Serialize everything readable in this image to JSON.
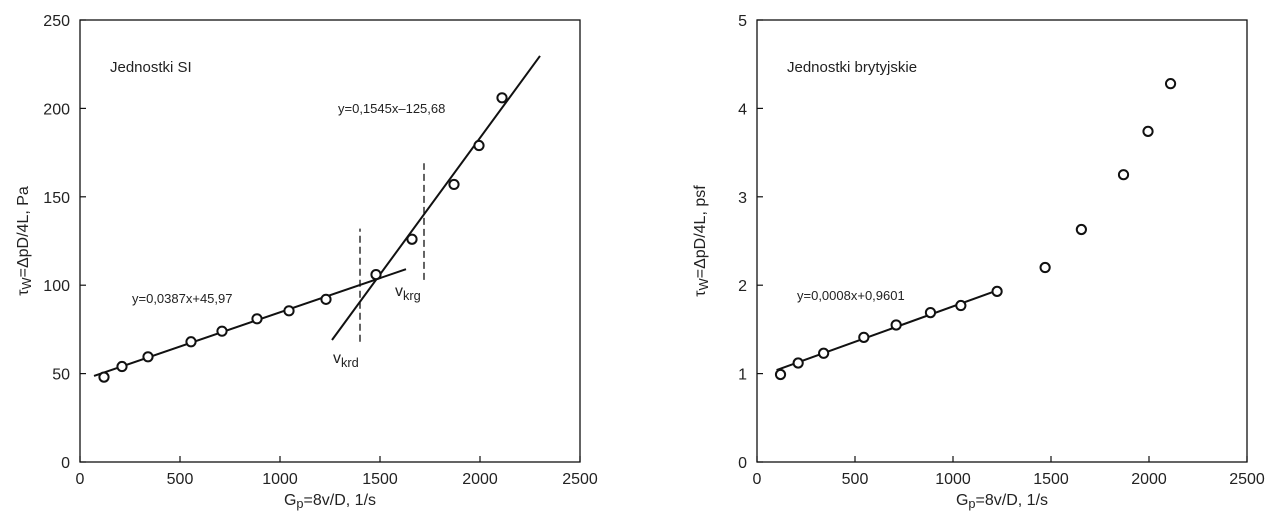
{
  "chart_data": [
    {
      "type": "scatter",
      "title": "Jednostki SI",
      "xlabel": "G",
      "xlabel_sub": "p",
      "xlabel_rest": "=8v/D, 1/s",
      "ylabel": "τ",
      "ylabel_sub": "W",
      "ylabel_rest": "=ΔpD/4L, Pa",
      "xlim": [
        0,
        2500
      ],
      "ylim": [
        0,
        250
      ],
      "xticks": [
        0,
        500,
        1000,
        1500,
        2000,
        2500
      ],
      "yticks": [
        0,
        50,
        100,
        150,
        200,
        250
      ],
      "grid": false,
      "series": [
        {
          "x": [
            120,
            210,
            340,
            555,
            710,
            885,
            1045,
            1230,
            1480,
            1660,
            1870,
            1995,
            2110
          ],
          "y": [
            48,
            54,
            59.5,
            68,
            74,
            81,
            85.5,
            92,
            106,
            126,
            157,
            179,
            206
          ]
        }
      ],
      "fits": [
        {
          "label": "y=0,0387x+45,97",
          "slope": 0.0387,
          "intercept": 45.97,
          "x_range": [
            70,
            1630
          ]
        },
        {
          "label": "y=0,1545x–125,68",
          "slope": 0.1545,
          "intercept": -125.68,
          "x_range": [
            1260,
            2300
          ]
        }
      ],
      "markers": [
        {
          "label": "v",
          "sub": "krd",
          "x": 1400,
          "y_range": [
            68,
            132
          ]
        },
        {
          "label": "v",
          "sub": "krg",
          "x": 1720,
          "y_range": [
            103,
            169
          ]
        }
      ]
    },
    {
      "type": "scatter",
      "title": "Jednostki brytyjskie",
      "xlabel": "G",
      "xlabel_sub": "p",
      "xlabel_rest": "=8v/D, 1/s",
      "ylabel": "τ",
      "ylabel_sub": "W",
      "ylabel_rest": "=ΔpD/4L, psf",
      "xlim": [
        0,
        2500
      ],
      "ylim": [
        0,
        5
      ],
      "xticks": [
        0,
        500,
        1000,
        1500,
        2000,
        2500
      ],
      "yticks": [
        0,
        1,
        2,
        3,
        4,
        5
      ],
      "grid": false,
      "series": [
        {
          "x": [
            120,
            210,
            340,
            545,
            710,
            885,
            1040,
            1225,
            1470,
            1655,
            1870,
            1995,
            2110
          ],
          "y": [
            0.99,
            1.12,
            1.23,
            1.41,
            1.55,
            1.69,
            1.77,
            1.93,
            2.2,
            2.63,
            3.25,
            3.74,
            4.28
          ]
        }
      ],
      "fits": [
        {
          "label": "y=0,0008x+0,9601",
          "slope": 0.0008,
          "intercept": 0.9601,
          "x_range": [
            100,
            1220
          ]
        }
      ],
      "markers": []
    }
  ]
}
